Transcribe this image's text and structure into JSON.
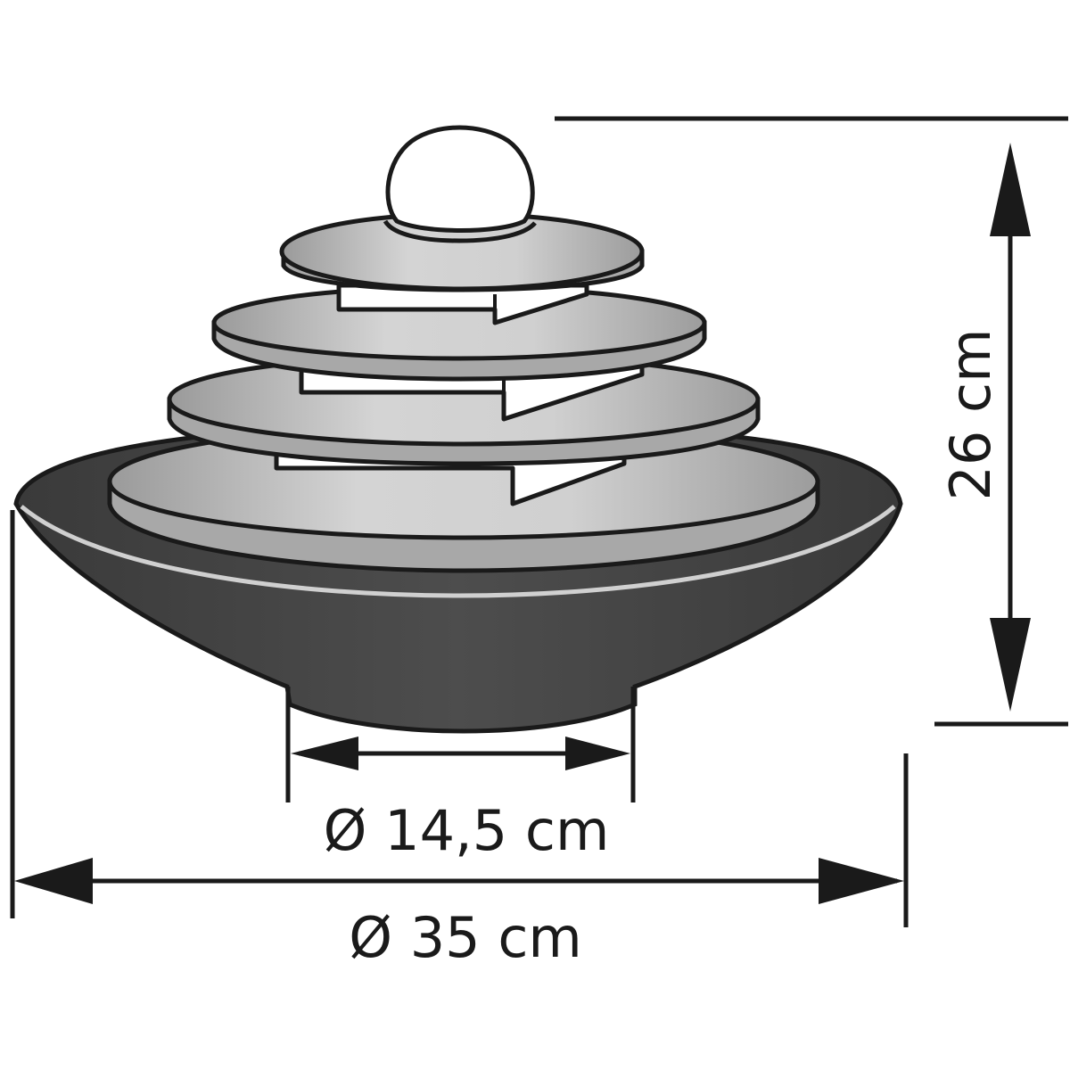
{
  "dimensions": {
    "base_diameter": "Ø 14,5 cm",
    "outer_diameter": "Ø 35 cm",
    "height": "26 cm"
  },
  "colors": {
    "line": "#1a1a1a",
    "bowl": "#454545",
    "bowl_rim": "#d0d0d0",
    "disc": "#bdbdbd",
    "disc_light": "#d9d9d9",
    "ball": "#ffffff"
  }
}
